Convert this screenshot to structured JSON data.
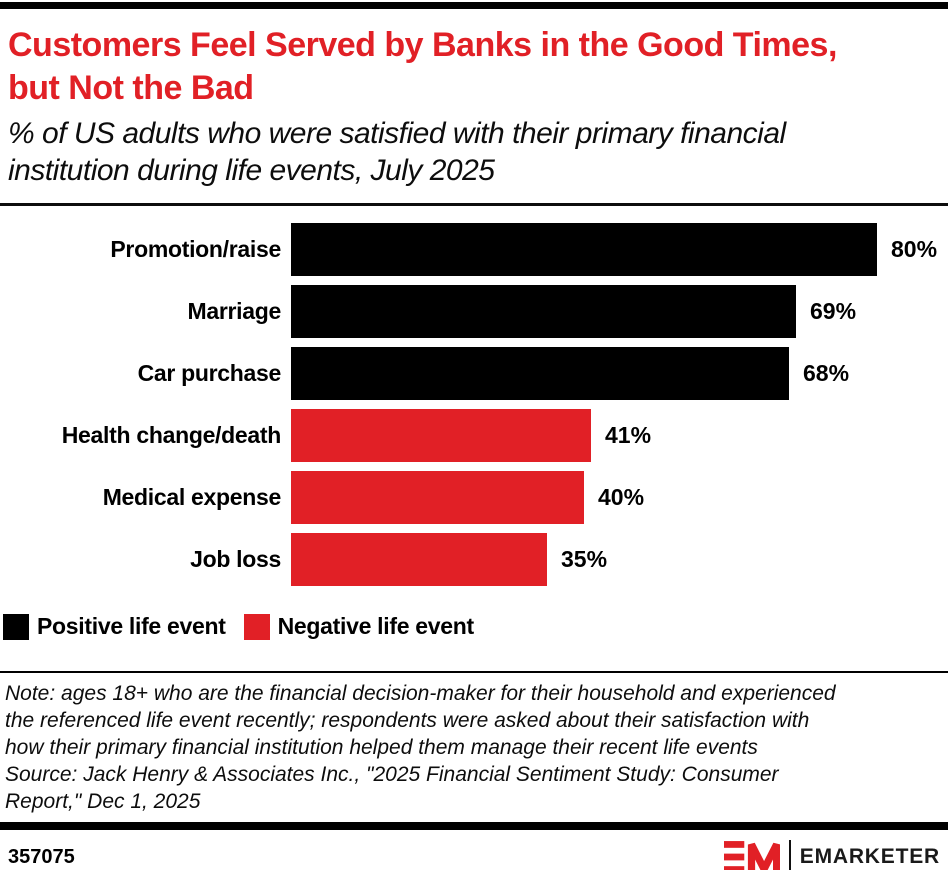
{
  "colors": {
    "accent_red": "#E12026",
    "bar_black": "#000000",
    "rule_black": "#000000",
    "background": "#FFFFFF"
  },
  "header": {
    "title": "Customers Feel Served by Banks in the Good Times, but Not the Bad",
    "subtitle": "% of US adults who were satisfied with their primary financial institution during life events, July 2025"
  },
  "chart_data": {
    "type": "bar",
    "orientation": "horizontal",
    "title": "Customers Feel Served by Banks in the Good Times, but Not the Bad",
    "subtitle": "% of US adults who were satisfied with their primary financial institution during life events, July 2025",
    "unit": "%",
    "categories": [
      "Promotion/raise",
      "Marriage",
      "Car purchase",
      "Health change/death",
      "Medical expense",
      "Job loss"
    ],
    "values": [
      80,
      69,
      68,
      41,
      40,
      35
    ],
    "value_labels": [
      "80%",
      "69%",
      "68%",
      "41%",
      "40%",
      "35%"
    ],
    "series_by_row": [
      "positive",
      "positive",
      "positive",
      "negative",
      "negative",
      "negative"
    ],
    "series_colors": {
      "positive": "#000000",
      "negative": "#E12026"
    },
    "legend": [
      {
        "key": "positive",
        "label": "Positive life event",
        "color": "#000000"
      },
      {
        "key": "negative",
        "label": "Negative life event",
        "color": "#E12026"
      }
    ],
    "legend_position": "bottom",
    "grid": false,
    "axes_shown": false,
    "xlim": [
      0,
      80
    ]
  },
  "footer": {
    "note_lines": [
      "Note: ages 18+ who are the financial decision-maker for their household and experienced",
      "the referenced life event recently; respondents were asked about their satisfaction with",
      "how their primary financial institution helped them manage their recent life events"
    ],
    "source_lines": [
      "Source: Jack Henry & Associates Inc., \"2025 Financial Sentiment Study: Consumer",
      "Report,\" Dec 1, 2025"
    ],
    "chart_id": "357075",
    "brand_name": "EMARKETER"
  }
}
